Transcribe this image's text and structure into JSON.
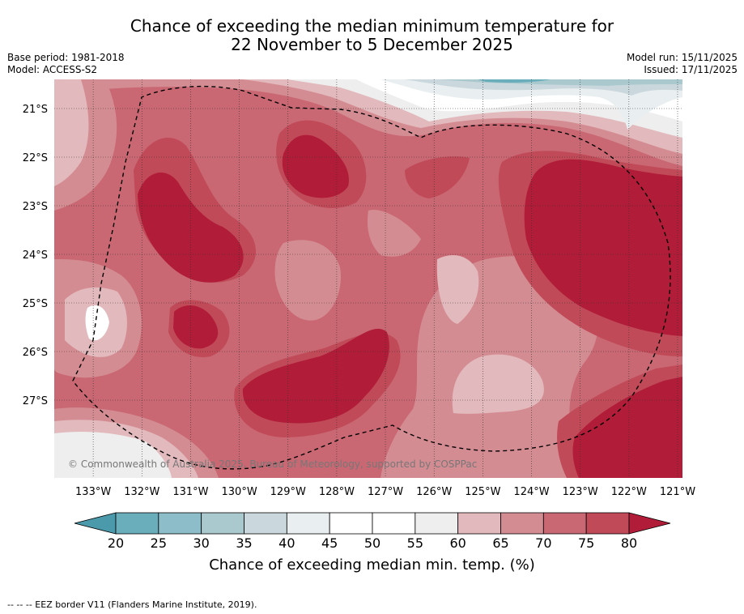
{
  "header": {
    "title_line1": "Chance of exceeding the median minimum temperature for",
    "title_line2": "22 November to 5 December 2025",
    "base_period": "Base period: 1981-2018",
    "model": "Model: ACCESS-S2",
    "model_run": "Model run: 15/11/2025",
    "issued": "Issued: 17/11/2025"
  },
  "chart_data": {
    "type": "heatmap",
    "title": "Chance of exceeding the median minimum temperature for 22 November to 5 December 2025",
    "x_ticks": [
      "133°W",
      "132°W",
      "131°W",
      "130°W",
      "129°W",
      "128°W",
      "127°W",
      "126°W",
      "125°W",
      "124°W",
      "123°W",
      "122°W",
      "121°W"
    ],
    "y_ticks": [
      "21°S",
      "22°S",
      "23°S",
      "24°S",
      "25°S",
      "26°S",
      "27°S"
    ],
    "x_range": [
      -133.8,
      -120.9
    ],
    "y_range": [
      -28.6,
      -20.4
    ],
    "colorbar": {
      "label": "Chance of exceeding median min. temp. (%)",
      "ticks": [
        "20",
        "25",
        "30",
        "35",
        "40",
        "45",
        "50",
        "55",
        "60",
        "65",
        "70",
        "75",
        "80"
      ],
      "colors": [
        "#6aadbb",
        "#8dbdc8",
        "#aac9cf",
        "#cad8dd",
        "#e9eff1",
        "#ffffff",
        "#ffffff",
        "#eeeeee",
        "#e2b9bc",
        "#d48c93",
        "#c96873",
        "#c04a58"
      ],
      "under_color": "#4b9aac",
      "over_color": "#b11c38"
    },
    "watermark": "© Commonwealth of Australia 2025, Bureau of Meteorology, supported by COSPPac"
  },
  "footnote": "--  --  -- EEZ border V11 (Flanders Marine Institute, 2019)."
}
